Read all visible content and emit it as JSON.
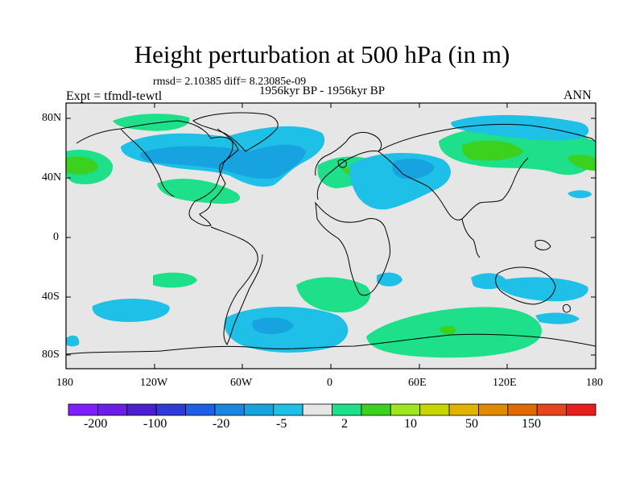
{
  "title": "Height perturbation at 500 hPa (in m)",
  "stats": "rmsd= 2.10385 diff= 8.23085e-09",
  "time_label": "1956kyr BP - 1956kyr BP",
  "experiment": "Expt = tfmdl-tewtl",
  "season": "ANN",
  "lat_ticks": [
    "80N",
    "40N",
    "0",
    "40S",
    "80S"
  ],
  "lon_ticks": [
    "180",
    "120W",
    "60W",
    "0",
    "60E",
    "120E",
    "180"
  ],
  "colorbar": {
    "colors": [
      "#7f1fff",
      "#6a1ee6",
      "#4b1fcf",
      "#2f3ad8",
      "#1f5ee6",
      "#1a86e0",
      "#17a3df",
      "#1fc0e8",
      "#e6e6e6",
      "#1ee08a",
      "#3cd11e",
      "#9ee61e",
      "#c8d600",
      "#e0b400",
      "#e08a00",
      "#e06a00",
      "#e6461e",
      "#e61e1e"
    ],
    "labels": [
      "-200",
      "-100",
      "-20",
      "-5",
      "2",
      "10",
      "50",
      "150"
    ]
  },
  "palette": {
    "ocean": "#e6e6e6",
    "green": "#1ee08a",
    "green_dark": "#3cd11e",
    "blue": "#1fc0e8",
    "blue_dark": "#17a3df",
    "coast": "#000000"
  }
}
